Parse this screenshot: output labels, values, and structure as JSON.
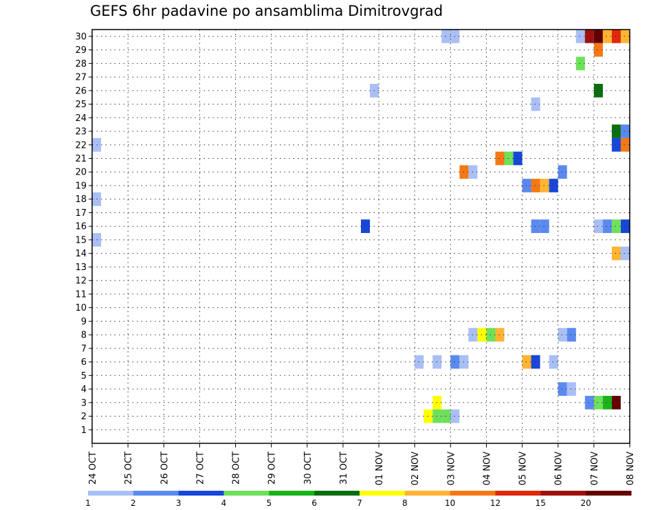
{
  "chart_data": {
    "type": "heatmap",
    "title": "GEFS 6hr padavine po ansamblima Dimitrovgrad",
    "x_ticks": [
      "24 OCT",
      "25 OCT",
      "26 OCT",
      "27 OCT",
      "28 OCT",
      "29 OCT",
      "30 OCT",
      "31 OCT",
      "01 NOV",
      "02 NOV",
      "03 NOV",
      "04 NOV",
      "05 NOV",
      "06 NOV",
      "07 NOV",
      "08 NOV"
    ],
    "y_ticks": [
      "1",
      "2",
      "3",
      "4",
      "5",
      "6",
      "7",
      "8",
      "9",
      "10",
      "11",
      "12",
      "13",
      "14",
      "15",
      "16",
      "17",
      "18",
      "19",
      "20",
      "21",
      "22",
      "23",
      "24",
      "25",
      "26",
      "27",
      "28",
      "29",
      "30"
    ],
    "xlim": [
      "24 OCT 00Z",
      "08 NOV 00Z"
    ],
    "ylim": [
      0,
      30
    ],
    "grid": true,
    "colorbar": {
      "labels": [
        "1",
        "2",
        "3",
        "4",
        "5",
        "6",
        "7",
        "8",
        "10",
        "12",
        "15",
        "20"
      ],
      "colors": [
        "#a9bff5",
        "#5a8af0",
        "#1746d8",
        "#6ee05a",
        "#19b419",
        "#0b6e10",
        "#ffff00",
        "#ffb432",
        "#f57814",
        "#e0280a",
        "#a00f0f",
        "#640000"
      ]
    },
    "cells": [
      {
        "t": "24 OCT 06Z",
        "member": 22,
        "color": "#a9bff5"
      },
      {
        "t": "24 OCT 06Z",
        "member": 18,
        "color": "#a9bff5"
      },
      {
        "t": "24 OCT 06Z",
        "member": 15,
        "color": "#a9bff5"
      },
      {
        "t": "31 OCT 18Z",
        "member": 16,
        "color": "#1746d8"
      },
      {
        "t": "01 NOV 00Z",
        "member": 26,
        "color": "#a9bff5"
      },
      {
        "t": "02 NOV 06Z",
        "member": 6,
        "color": "#a9bff5"
      },
      {
        "t": "02 NOV 12Z",
        "member": 2,
        "color": "#ffff00"
      },
      {
        "t": "02 NOV 18Z",
        "member": 6,
        "color": "#a9bff5"
      },
      {
        "t": "02 NOV 18Z",
        "member": 3,
        "color": "#ffff00"
      },
      {
        "t": "02 NOV 18Z",
        "member": 2,
        "color": "#6ee05a"
      },
      {
        "t": "03 NOV 00Z",
        "member": 30,
        "color": "#a9bff5"
      },
      {
        "t": "03 NOV 00Z",
        "member": 2,
        "color": "#6ee05a"
      },
      {
        "t": "03 NOV 06Z",
        "member": 30,
        "color": "#a9bff5"
      },
      {
        "t": "03 NOV 06Z",
        "member": 6,
        "color": "#5a8af0"
      },
      {
        "t": "03 NOV 06Z",
        "member": 2,
        "color": "#a9bff5"
      },
      {
        "t": "03 NOV 12Z",
        "member": 6,
        "color": "#a9bff5"
      },
      {
        "t": "03 NOV 12Z",
        "member": 20,
        "color": "#f57814"
      },
      {
        "t": "03 NOV 18Z",
        "member": 20,
        "color": "#a9bff5"
      },
      {
        "t": "03 NOV 18Z",
        "member": 8,
        "color": "#a9bff5"
      },
      {
        "t": "04 NOV 00Z",
        "member": 8,
        "color": "#ffff00"
      },
      {
        "t": "04 NOV 06Z",
        "member": 8,
        "color": "#6ee05a"
      },
      {
        "t": "04 NOV 12Z",
        "member": 8,
        "color": "#ffb432"
      },
      {
        "t": "04 NOV 12Z",
        "member": 21,
        "color": "#f57814"
      },
      {
        "t": "04 NOV 18Z",
        "member": 21,
        "color": "#6ee05a"
      },
      {
        "t": "05 NOV 00Z",
        "member": 21,
        "color": "#1746d8"
      },
      {
        "t": "05 NOV 06Z",
        "member": 19,
        "color": "#5a8af0"
      },
      {
        "t": "05 NOV 06Z",
        "member": 6,
        "color": "#ffb432"
      },
      {
        "t": "05 NOV 12Z",
        "member": 25,
        "color": "#a9bff5"
      },
      {
        "t": "05 NOV 12Z",
        "member": 19,
        "color": "#f57814"
      },
      {
        "t": "05 NOV 12Z",
        "member": 16,
        "color": "#5a8af0"
      },
      {
        "t": "05 NOV 12Z",
        "member": 6,
        "color": "#1746d8"
      },
      {
        "t": "05 NOV 18Z",
        "member": 19,
        "color": "#ffb432"
      },
      {
        "t": "05 NOV 18Z",
        "member": 16,
        "color": "#5a8af0"
      },
      {
        "t": "06 NOV 00Z",
        "member": 19,
        "color": "#1746d8"
      },
      {
        "t": "06 NOV 00Z",
        "member": 6,
        "color": "#a9bff5"
      },
      {
        "t": "06 NOV 06Z",
        "member": 20,
        "color": "#5a8af0"
      },
      {
        "t": "06 NOV 06Z",
        "member": 8,
        "color": "#a9bff5"
      },
      {
        "t": "06 NOV 06Z",
        "member": 4,
        "color": "#5a8af0"
      },
      {
        "t": "06 NOV 12Z",
        "member": 8,
        "color": "#5a8af0"
      },
      {
        "t": "06 NOV 12Z",
        "member": 4,
        "color": "#a9bff5"
      },
      {
        "t": "06 NOV 18Z",
        "member": 30,
        "color": "#a9bff5"
      },
      {
        "t": "06 NOV 18Z",
        "member": 28,
        "color": "#6ee05a"
      },
      {
        "t": "07 NOV 00Z",
        "member": 30,
        "color": "#a00f0f"
      },
      {
        "t": "07 NOV 00Z",
        "member": 3,
        "color": "#5a8af0"
      },
      {
        "t": "07 NOV 06Z",
        "member": 30,
        "color": "#640000"
      },
      {
        "t": "07 NOV 06Z",
        "member": 29,
        "color": "#f57814"
      },
      {
        "t": "07 NOV 06Z",
        "member": 26,
        "color": "#0b6e10"
      },
      {
        "t": "07 NOV 06Z",
        "member": 16,
        "color": "#a9bff5"
      },
      {
        "t": "07 NOV 06Z",
        "member": 3,
        "color": "#6ee05a"
      },
      {
        "t": "07 NOV 12Z",
        "member": 30,
        "color": "#ffb432"
      },
      {
        "t": "07 NOV 12Z",
        "member": 16,
        "color": "#5a8af0"
      },
      {
        "t": "07 NOV 12Z",
        "member": 3,
        "color": "#19b419"
      },
      {
        "t": "07 NOV 18Z",
        "member": 30,
        "color": "#e0280a"
      },
      {
        "t": "07 NOV 18Z",
        "member": 23,
        "color": "#0b6e10"
      },
      {
        "t": "07 NOV 18Z",
        "member": 22,
        "color": "#1746d8"
      },
      {
        "t": "07 NOV 18Z",
        "member": 16,
        "color": "#6ee05a"
      },
      {
        "t": "07 NOV 18Z",
        "member": 14,
        "color": "#ffb432"
      },
      {
        "t": "07 NOV 18Z",
        "member": 3,
        "color": "#640000"
      },
      {
        "t": "08 NOV 00Z",
        "member": 30,
        "color": "#ffb432"
      },
      {
        "t": "08 NOV 00Z",
        "member": 23,
        "color": "#5a8af0"
      },
      {
        "t": "08 NOV 00Z",
        "member": 22,
        "color": "#f57814"
      },
      {
        "t": "08 NOV 00Z",
        "member": 16,
        "color": "#1746d8"
      },
      {
        "t": "08 NOV 00Z",
        "member": 14,
        "color": "#a9bff5"
      }
    ]
  }
}
